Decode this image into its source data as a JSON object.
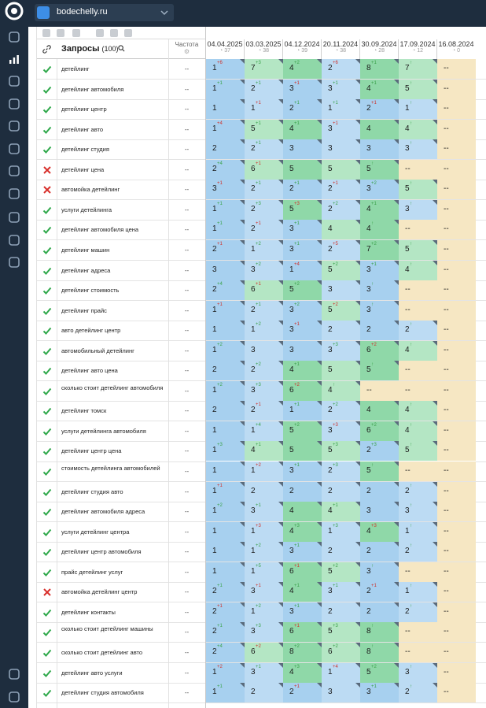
{
  "app": {
    "project_name": "bodechelly.ru",
    "sidebar_icons": [
      "logo-icon",
      "projects-icon",
      "positions-icon",
      "competitors-icon",
      "trophy-icon",
      "analytics-icon",
      "tools-icon",
      "reports-icon",
      "settings-bug-icon",
      "pages-icon",
      "structure-icon",
      "gear-icon",
      "logout-icon",
      "external-link-icon"
    ]
  },
  "table": {
    "title": "Запросы",
    "count": "(100)",
    "freq_header": "Частота",
    "dates": [
      {
        "date": "04.04.2025",
        "value": "37"
      },
      {
        "date": "03.03.2025",
        "value": "38"
      },
      {
        "date": "04.12.2024",
        "value": "39"
      },
      {
        "date": "20.11.2024",
        "value": "38"
      },
      {
        "date": "30.09.2024",
        "value": "28"
      },
      {
        "date": "17.09.2024",
        "value": "12"
      },
      {
        "date": "16.08.2024",
        "value": "0"
      }
    ],
    "rows": [
      {
        "q": "детейлинг",
        "ok": true,
        "freq": "--",
        "cells": [
          [
            "1",
            "+6"
          ],
          [
            "7",
            "+3"
          ],
          [
            "4",
            "+2"
          ],
          [
            "2",
            "+6"
          ],
          [
            "8",
            "+1"
          ],
          [
            "7",
            "↑"
          ],
          [
            "--",
            ""
          ]
        ]
      },
      {
        "q": "детейлинг автомобиля",
        "ok": true,
        "freq": "--",
        "cells": [
          [
            "1",
            "+1"
          ],
          [
            "2",
            "+1"
          ],
          [
            "3",
            "+1"
          ],
          [
            "3",
            "+1"
          ],
          [
            "4",
            "+1"
          ],
          [
            "5",
            "↑"
          ],
          [
            "--",
            ""
          ]
        ]
      },
      {
        "q": "детейлинг центр",
        "ok": true,
        "freq": "--",
        "cells": [
          [
            "1",
            ""
          ],
          [
            "1",
            "+1"
          ],
          [
            "2",
            "+1"
          ],
          [
            "1",
            "+1"
          ],
          [
            "2",
            "+1"
          ],
          [
            "1",
            "↑"
          ],
          [
            "--",
            ""
          ]
        ]
      },
      {
        "q": "детейлинг авто",
        "ok": true,
        "freq": "--",
        "cells": [
          [
            "1",
            "+4"
          ],
          [
            "5",
            "+1"
          ],
          [
            "4",
            "+1"
          ],
          [
            "3",
            "+1"
          ],
          [
            "4",
            ""
          ],
          [
            "4",
            "↑"
          ],
          [
            "--",
            ""
          ]
        ]
      },
      {
        "q": "детейлинг студия",
        "ok": true,
        "freq": "--",
        "cells": [
          [
            "2",
            ""
          ],
          [
            "2",
            "+1"
          ],
          [
            "3",
            ""
          ],
          [
            "3",
            ""
          ],
          [
            "3",
            ""
          ],
          [
            "3",
            "↑"
          ],
          [
            "--",
            ""
          ]
        ]
      },
      {
        "q": "детейлинг цена",
        "ok": false,
        "freq": "--",
        "cells": [
          [
            "2",
            "+4"
          ],
          [
            "6",
            "+1"
          ],
          [
            "5",
            ""
          ],
          [
            "5",
            ""
          ],
          [
            "5",
            "↑"
          ],
          [
            "--",
            ""
          ],
          [
            "--",
            ""
          ]
        ]
      },
      {
        "q": "автомойка детейлинг",
        "ok": false,
        "freq": "--",
        "cells": [
          [
            "3",
            "+1"
          ],
          [
            "2",
            "+1"
          ],
          [
            "2",
            "+1"
          ],
          [
            "2",
            "+1"
          ],
          [
            "3",
            "+2"
          ],
          [
            "5",
            "↑"
          ],
          [
            "--",
            ""
          ]
        ]
      },
      {
        "q": "услуги детейлинга",
        "ok": true,
        "freq": "--",
        "cells": [
          [
            "1",
            "+1"
          ],
          [
            "2",
            "+3"
          ],
          [
            "5",
            "+3"
          ],
          [
            "2",
            "+2"
          ],
          [
            "4",
            "+1"
          ],
          [
            "3",
            "↑"
          ],
          [
            "--",
            ""
          ]
        ]
      },
      {
        "q": "детейлинг автомобиля цена",
        "ok": true,
        "freq": "--",
        "cells": [
          [
            "1",
            "+1"
          ],
          [
            "2",
            "+1"
          ],
          [
            "3",
            "+1"
          ],
          [
            "4",
            ""
          ],
          [
            "4",
            "↑"
          ],
          [
            "--",
            ""
          ],
          [
            "--",
            ""
          ]
        ]
      },
      {
        "q": "детейлинг машин",
        "ok": true,
        "freq": "--",
        "cells": [
          [
            "2",
            "+1"
          ],
          [
            "1",
            "+2"
          ],
          [
            "3",
            "+1"
          ],
          [
            "2",
            "+5"
          ],
          [
            "7",
            "+2"
          ],
          [
            "5",
            "↑"
          ],
          [
            "--",
            ""
          ]
        ]
      },
      {
        "q": "детейлинг адреса",
        "ok": true,
        "freq": "--",
        "cells": [
          [
            "3",
            ""
          ],
          [
            "3",
            "+2"
          ],
          [
            "1",
            "+4"
          ],
          [
            "5",
            "+2"
          ],
          [
            "3",
            "+1"
          ],
          [
            "4",
            "↑"
          ],
          [
            "--",
            ""
          ]
        ]
      },
      {
        "q": "детейлинг стоимость",
        "ok": true,
        "freq": "--",
        "cells": [
          [
            "2",
            "+4"
          ],
          [
            "6",
            "+1"
          ],
          [
            "5",
            "+2"
          ],
          [
            "3",
            ""
          ],
          [
            "3",
            "↑"
          ],
          [
            "--",
            ""
          ],
          [
            "--",
            ""
          ]
        ]
      },
      {
        "q": "детейлинг прайс",
        "ok": true,
        "freq": "--",
        "cells": [
          [
            "1",
            "+1"
          ],
          [
            "2",
            "+1"
          ],
          [
            "3",
            "+2"
          ],
          [
            "5",
            "+2"
          ],
          [
            "3",
            "↑"
          ],
          [
            "--",
            ""
          ],
          [
            "--",
            ""
          ]
        ]
      },
      {
        "q": "авто детейлинг центр",
        "ok": true,
        "freq": "--",
        "cells": [
          [
            "1",
            ""
          ],
          [
            "1",
            "+2"
          ],
          [
            "3",
            "+1"
          ],
          [
            "2",
            ""
          ],
          [
            "2",
            ""
          ],
          [
            "2",
            "↑"
          ],
          [
            "--",
            ""
          ]
        ]
      },
      {
        "q": "автомобильный детейлинг",
        "ok": true,
        "freq": "--",
        "cells": [
          [
            "1",
            "+2"
          ],
          [
            "3",
            ""
          ],
          [
            "3",
            ""
          ],
          [
            "3",
            "+3"
          ],
          [
            "6",
            "+2"
          ],
          [
            "4",
            "↑"
          ],
          [
            "--",
            ""
          ]
        ]
      },
      {
        "q": "детейлинг авто цена",
        "ok": true,
        "freq": "--",
        "cells": [
          [
            "2",
            ""
          ],
          [
            "2",
            "+2"
          ],
          [
            "4",
            "+1"
          ],
          [
            "5",
            ""
          ],
          [
            "5",
            "↑"
          ],
          [
            "--",
            ""
          ],
          [
            "--",
            ""
          ]
        ]
      },
      {
        "q": "сколько стоит детейлинг автомобиля",
        "ok": true,
        "freq": "--",
        "cells": [
          [
            "1",
            "+2"
          ],
          [
            "3",
            "+3"
          ],
          [
            "6",
            "+2"
          ],
          [
            "4",
            "↑"
          ],
          [
            "--",
            ""
          ],
          [
            "--",
            ""
          ],
          [
            "--",
            ""
          ]
        ]
      },
      {
        "q": "детейлинг томск",
        "ok": true,
        "freq": "--",
        "cells": [
          [
            "2",
            ""
          ],
          [
            "2",
            "+1"
          ],
          [
            "1",
            "+1"
          ],
          [
            "2",
            "+2"
          ],
          [
            "4",
            ""
          ],
          [
            "4",
            "↑"
          ],
          [
            "--",
            ""
          ]
        ]
      },
      {
        "q": "услуги детейлинга автомобиля",
        "ok": true,
        "freq": "--",
        "cells": [
          [
            "1",
            ""
          ],
          [
            "1",
            "+4"
          ],
          [
            "5",
            "+2"
          ],
          [
            "3",
            "+3"
          ],
          [
            "6",
            "+2"
          ],
          [
            "4",
            "↑"
          ],
          [
            "--",
            ""
          ]
        ]
      },
      {
        "q": "детейлинг центр цена",
        "ok": true,
        "freq": "--",
        "cells": [
          [
            "1",
            "+3"
          ],
          [
            "4",
            "+1"
          ],
          [
            "5",
            ""
          ],
          [
            "5",
            "+3"
          ],
          [
            "2",
            "+3"
          ],
          [
            "5",
            "↑"
          ],
          [
            "--",
            ""
          ]
        ]
      },
      {
        "q": "стоимость детейлинга автомобилей",
        "ok": true,
        "freq": "--",
        "cells": [
          [
            "1",
            ""
          ],
          [
            "1",
            "+2"
          ],
          [
            "3",
            "+1"
          ],
          [
            "2",
            "+3"
          ],
          [
            "5",
            "↑"
          ],
          [
            "--",
            ""
          ],
          [
            "--",
            ""
          ]
        ]
      },
      {
        "q": "детейлинг студия авто",
        "ok": true,
        "freq": "--",
        "cells": [
          [
            "1",
            "+1"
          ],
          [
            "2",
            ""
          ],
          [
            "2",
            ""
          ],
          [
            "2",
            ""
          ],
          [
            "2",
            ""
          ],
          [
            "2",
            "↑"
          ],
          [
            "--",
            ""
          ]
        ]
      },
      {
        "q": "детейлинг автомобиля адреса",
        "ok": true,
        "freq": "--",
        "cells": [
          [
            "1",
            "+2"
          ],
          [
            "3",
            "+1"
          ],
          [
            "4",
            ""
          ],
          [
            "4",
            "+1"
          ],
          [
            "3",
            ""
          ],
          [
            "3",
            "↑"
          ],
          [
            "--",
            ""
          ]
        ]
      },
      {
        "q": "услуги детейлинг центра",
        "ok": true,
        "freq": "--",
        "cells": [
          [
            "1",
            ""
          ],
          [
            "1",
            "+3"
          ],
          [
            "4",
            "+3"
          ],
          [
            "1",
            "+3"
          ],
          [
            "4",
            "+3"
          ],
          [
            "1",
            "↑"
          ],
          [
            "--",
            ""
          ]
        ]
      },
      {
        "q": "детейлинг центр автомобиля",
        "ok": true,
        "freq": "--",
        "cells": [
          [
            "1",
            ""
          ],
          [
            "1",
            "+2"
          ],
          [
            "3",
            "+1"
          ],
          [
            "2",
            ""
          ],
          [
            "2",
            ""
          ],
          [
            "2",
            "↑"
          ],
          [
            "--",
            ""
          ]
        ]
      },
      {
        "q": "прайс детейлинг услуг",
        "ok": true,
        "freq": "--",
        "cells": [
          [
            "1",
            ""
          ],
          [
            "1",
            "+5"
          ],
          [
            "6",
            "+1"
          ],
          [
            "5",
            "+2"
          ],
          [
            "3",
            "↑"
          ],
          [
            "--",
            ""
          ],
          [
            "--",
            ""
          ]
        ]
      },
      {
        "q": "автомойка детейлинг центр",
        "ok": false,
        "freq": "--",
        "cells": [
          [
            "2",
            "+1"
          ],
          [
            "3",
            "+1"
          ],
          [
            "4",
            "+1"
          ],
          [
            "3",
            "+1"
          ],
          [
            "2",
            "+1"
          ],
          [
            "1",
            "↑"
          ],
          [
            "--",
            ""
          ]
        ]
      },
      {
        "q": "детейлинг контакты",
        "ok": true,
        "freq": "--",
        "cells": [
          [
            "2",
            "+1"
          ],
          [
            "1",
            "+2"
          ],
          [
            "3",
            "+1"
          ],
          [
            "2",
            ""
          ],
          [
            "2",
            ""
          ],
          [
            "2",
            "↑"
          ],
          [
            "--",
            ""
          ]
        ]
      },
      {
        "q": "сколько стоит детейлинг машины",
        "ok": true,
        "freq": "--",
        "cells": [
          [
            "2",
            "+1"
          ],
          [
            "3",
            "+3"
          ],
          [
            "6",
            "+1"
          ],
          [
            "5",
            "+3"
          ],
          [
            "8",
            "↑"
          ],
          [
            "--",
            ""
          ],
          [
            "--",
            ""
          ]
        ]
      },
      {
        "q": "сколько стоит детейлинг авто",
        "ok": true,
        "freq": "--",
        "cells": [
          [
            "2",
            "+4"
          ],
          [
            "6",
            "+2"
          ],
          [
            "8",
            "+2"
          ],
          [
            "6",
            "+2"
          ],
          [
            "8",
            "↑"
          ],
          [
            "--",
            ""
          ],
          [
            "--",
            ""
          ]
        ]
      },
      {
        "q": "детейлинг авто услуги",
        "ok": true,
        "freq": "--",
        "cells": [
          [
            "1",
            "+2"
          ],
          [
            "3",
            "+1"
          ],
          [
            "4",
            "+3"
          ],
          [
            "1",
            "+4"
          ],
          [
            "5",
            "+2"
          ],
          [
            "3",
            "↑"
          ],
          [
            "--",
            ""
          ]
        ]
      },
      {
        "q": "детейлинг студия автомобиля",
        "ok": true,
        "freq": "--",
        "cells": [
          [
            "1",
            "+1"
          ],
          [
            "2",
            ""
          ],
          [
            "2",
            "+1"
          ],
          [
            "3",
            ""
          ],
          [
            "3",
            "+1"
          ],
          [
            "2",
            "↑"
          ],
          [
            "--",
            ""
          ]
        ]
      }
    ]
  },
  "colors": {
    "sidebar": "#1e2d3e",
    "check_ok": "#2ea84a",
    "check_fail": "#d8302c",
    "top_rank": "#a7d0ef",
    "mid_rank": "#8fd8a8",
    "no_data": "#f6e7c3"
  }
}
